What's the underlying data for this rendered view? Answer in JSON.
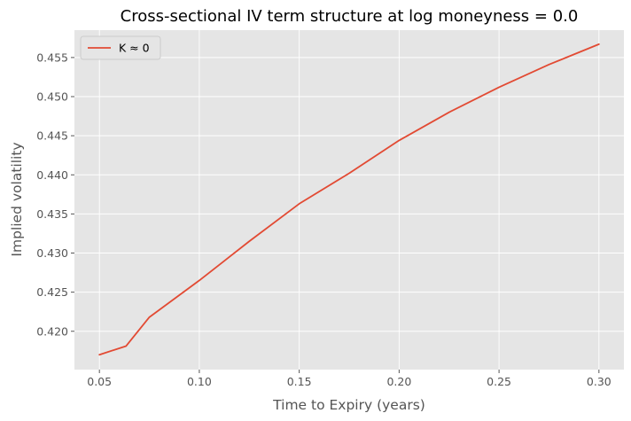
{
  "chart_data": {
    "type": "line",
    "title": "Cross-sectional IV term structure at log moneyness = 0.0",
    "xlabel": "Time to Expiry (years)",
    "ylabel": "Implied volatility",
    "xlim": [
      0.0375,
      0.3125
    ],
    "ylim": [
      0.4151,
      0.4585
    ],
    "xticks": [
      0.05,
      0.1,
      0.15,
      0.2,
      0.25,
      0.3
    ],
    "xtick_labels": [
      "0.05",
      "0.10",
      "0.15",
      "0.20",
      "0.25",
      "0.30"
    ],
    "yticks": [
      0.42,
      0.425,
      0.43,
      0.435,
      0.44,
      0.445,
      0.45,
      0.455
    ],
    "ytick_labels": [
      "0.420",
      "0.425",
      "0.430",
      "0.435",
      "0.440",
      "0.445",
      "0.450",
      "0.455"
    ],
    "grid": true,
    "legend_position": "top-left",
    "series": [
      {
        "name": "K ≈ 0",
        "color": "#E24A33",
        "x": [
          0.05,
          0.0633,
          0.075,
          0.1,
          0.125,
          0.15,
          0.175,
          0.2,
          0.225,
          0.25,
          0.275,
          0.3
        ],
        "y": [
          0.417,
          0.4181,
          0.4218,
          0.4265,
          0.4315,
          0.4363,
          0.4402,
          0.4444,
          0.448,
          0.4512,
          0.4541,
          0.4567
        ]
      }
    ]
  }
}
